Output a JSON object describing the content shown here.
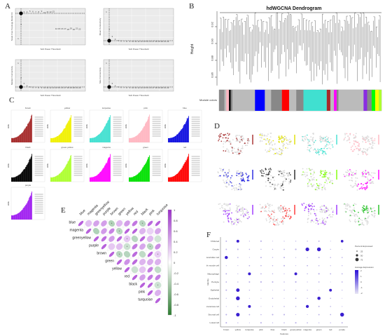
{
  "panels": {
    "A": {
      "letter": "A",
      "plots": [
        {
          "ylabel": "Scale Free Topology Model Fit",
          "xlabel": "Soft Power Threshold"
        },
        {
          "ylabel": "Mean Connectivity",
          "xlabel": "Soft Power Threshold"
        },
        {
          "ylabel": "Median Connectivity",
          "xlabel": "Soft Power Threshold"
        },
        {
          "ylabel": "Max Connectivity",
          "xlabel": "Soft Power Threshold"
        }
      ]
    },
    "B": {
      "letter": "B",
      "title": "hdWGCNA Dendrogram",
      "ylabel": "Height",
      "yticks": [
        "0.92",
        "0.90",
        "0.88",
        "0.86"
      ],
      "module_colors_label": "Module colors",
      "color_bar": [
        "#888888",
        "#bbbbbb",
        "#ffb6c1",
        "#000000",
        "#888888",
        "#bbbbbb",
        "#0000ff",
        "#bbbbbb",
        "#888888",
        "#ff0000",
        "#bbbbbb",
        "#888888",
        "#40e0d0",
        "#a52a2a",
        "#bbbbbb",
        "#ff00ff",
        "#888888",
        "#bbbbbb",
        "#8a2be2",
        "#888888",
        "#00ff00",
        "#ffff00",
        "#adff2f"
      ]
    },
    "C": {
      "letter": "C",
      "modules": [
        {
          "name": "brown",
          "color": "#a52a2a"
        },
        {
          "name": "yellow",
          "color": "#f0f000"
        },
        {
          "name": "turquoise",
          "color": "#40e0d0"
        },
        {
          "name": "pink",
          "color": "#ffb6c1"
        },
        {
          "name": "blue",
          "color": "#1010e0"
        },
        {
          "name": "black",
          "color": "#000000"
        },
        {
          "name": "green-yellow",
          "color": "#adff2f"
        },
        {
          "name": "magenta",
          "color": "#ff00ff"
        },
        {
          "name": "green",
          "color": "#00e000"
        },
        {
          "name": "red",
          "color": "#ff0000"
        },
        {
          "name": "purple",
          "color": "#a020f0"
        }
      ]
    },
    "D": {
      "letter": "D",
      "modules": [
        "brown",
        "yellow",
        "turquoise",
        "pink",
        "blue",
        "black",
        "greenyellow",
        "magenta",
        "purple",
        "red",
        "purple2",
        "green"
      ],
      "colors": [
        "#a52a2a",
        "#e0e000",
        "#40e0d0",
        "#ffb6c1",
        "#2020e0",
        "#222222",
        "#7fff00",
        "#ff00ff",
        "#9b30ff",
        "#ff3030",
        "#9b30ff",
        "#20c020"
      ]
    },
    "E": {
      "letter": "E",
      "labels": [
        "blue",
        "magenta",
        "greenyellow",
        "purple",
        "brown",
        "green",
        "yellow",
        "red",
        "black",
        "pink",
        "turquoise"
      ],
      "scale": [
        "1",
        "0.8",
        "0.6",
        "0.4",
        "0.2",
        "0",
        "-0.2",
        "-0.4",
        "-0.6",
        "-0.8",
        "-1"
      ]
    },
    "F": {
      "letter": "F",
      "ylabel": "Identity",
      "xlabel": "Features",
      "rows": [
        "T/NK/cell",
        "Oocyte",
        "Natural killer cell",
        "Smooth muscle cell",
        "Macrophage",
        "Pericyte",
        "Epithelial",
        "Endothelial",
        "Granulosa cell",
        "Stromal cell",
        "Luteal cell"
      ],
      "cols": [
        "brown",
        "yellow",
        "turquoise",
        "pink",
        "blue",
        "black",
        "greenyellow",
        "magenta",
        "green",
        "red",
        "purple"
      ],
      "legend_size_title": "Percent Expressed",
      "legend_size": [
        "25",
        "50",
        "75"
      ],
      "legend_color_title": "Average Expression",
      "legend_color": [
        "2",
        "1",
        "0",
        "-1",
        "-2"
      ]
    }
  }
}
